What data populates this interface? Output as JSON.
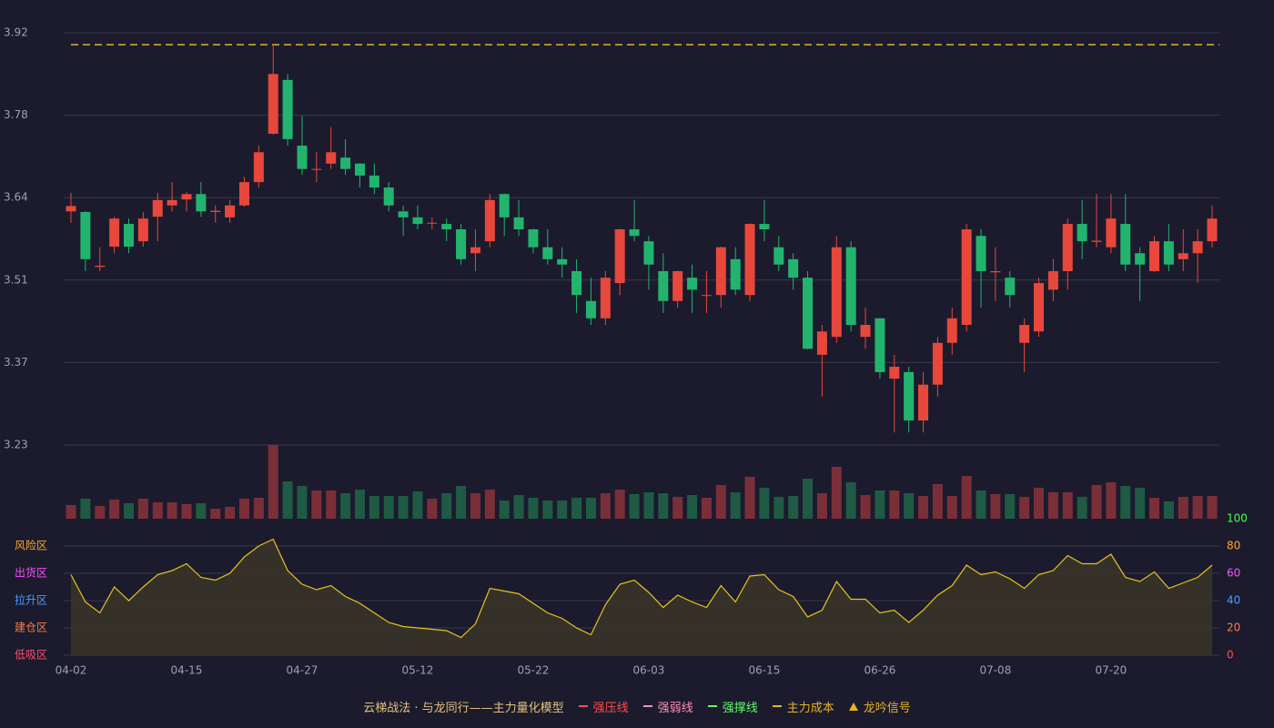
{
  "chart_data": [
    {
      "type": "candlestick",
      "up_color": "#e8473c",
      "down_color": "#22b46e",
      "categories": [
        "04-02",
        null,
        null,
        null,
        null,
        null,
        null,
        null,
        "04-15",
        null,
        null,
        null,
        null,
        null,
        null,
        null,
        "04-27",
        null,
        null,
        null,
        null,
        null,
        null,
        null,
        "05-12",
        null,
        null,
        null,
        null,
        null,
        null,
        null,
        "05-22",
        null,
        null,
        null,
        null,
        null,
        null,
        null,
        "06-03",
        null,
        null,
        null,
        null,
        null,
        null,
        null,
        "06-15",
        null,
        null,
        null,
        null,
        null,
        null,
        null,
        "06-26",
        null,
        null,
        null,
        null,
        null,
        null,
        null,
        "07-08",
        null,
        null,
        null,
        null,
        null,
        null,
        null,
        "07-20",
        null,
        null,
        null,
        null,
        null,
        null,
        null
      ],
      "open": [
        3.621,
        3.62,
        3.528,
        3.562,
        3.6,
        3.571,
        3.612,
        3.631,
        3.641,
        3.65,
        3.62,
        3.611,
        3.631,
        3.67,
        3.751,
        3.841,
        3.731,
        3.691,
        3.701,
        3.711,
        3.701,
        3.681,
        3.661,
        3.621,
        3.611,
        3.601,
        3.6,
        3.591,
        3.551,
        3.571,
        3.65,
        3.611,
        3.591,
        3.561,
        3.541,
        3.521,
        3.471,
        3.442,
        3.501,
        3.591,
        3.571,
        3.521,
        3.471,
        3.51,
        3.48,
        3.481,
        3.541,
        3.481,
        3.6,
        3.561,
        3.541,
        3.51,
        3.381,
        3.411,
        3.561,
        3.411,
        3.442,
        3.341,
        3.352,
        3.271,
        3.331,
        3.401,
        3.431,
        3.58,
        3.519,
        3.51,
        3.401,
        3.42,
        3.49,
        3.521,
        3.6,
        3.57,
        3.561,
        3.6,
        3.551,
        3.521,
        3.571,
        3.541,
        3.551,
        3.571
      ],
      "high": [
        3.652,
        3.621,
        3.561,
        3.612,
        3.609,
        3.62,
        3.652,
        3.67,
        3.653,
        3.67,
        3.631,
        3.64,
        3.679,
        3.731,
        3.9,
        3.851,
        3.781,
        3.72,
        3.762,
        3.742,
        3.702,
        3.701,
        3.67,
        3.631,
        3.631,
        3.611,
        3.609,
        3.6,
        3.591,
        3.65,
        3.651,
        3.64,
        3.592,
        3.591,
        3.561,
        3.541,
        3.51,
        3.521,
        3.592,
        3.64,
        3.58,
        3.551,
        3.522,
        3.532,
        3.521,
        3.562,
        3.561,
        3.601,
        3.64,
        3.58,
        3.551,
        3.521,
        3.431,
        3.58,
        3.571,
        3.46,
        3.443,
        3.381,
        3.361,
        3.352,
        3.411,
        3.46,
        3.6,
        3.591,
        3.561,
        3.521,
        3.442,
        3.51,
        3.541,
        3.609,
        3.64,
        3.65,
        3.65,
        3.65,
        3.561,
        3.58,
        3.6,
        3.591,
        3.591,
        3.631
      ],
      "low": [
        3.602,
        3.521,
        3.521,
        3.551,
        3.551,
        3.562,
        3.571,
        3.621,
        3.621,
        3.612,
        3.602,
        3.602,
        3.629,
        3.661,
        3.749,
        3.731,
        3.682,
        3.67,
        3.692,
        3.682,
        3.661,
        3.65,
        3.621,
        3.58,
        3.591,
        3.591,
        3.571,
        3.532,
        3.521,
        3.561,
        3.58,
        3.58,
        3.551,
        3.532,
        3.51,
        3.451,
        3.431,
        3.431,
        3.481,
        3.571,
        3.49,
        3.451,
        3.46,
        3.451,
        3.451,
        3.46,
        3.481,
        3.471,
        3.571,
        3.521,
        3.49,
        3.39,
        3.311,
        3.401,
        3.42,
        3.391,
        3.341,
        3.251,
        3.251,
        3.251,
        3.311,
        3.381,
        3.42,
        3.46,
        3.471,
        3.46,
        3.352,
        3.411,
        3.471,
        3.49,
        3.541,
        3.561,
        3.551,
        3.521,
        3.471,
        3.52,
        3.521,
        3.521,
        3.501,
        3.561
      ],
      "close": [
        3.63,
        3.541,
        3.53,
        3.609,
        3.562,
        3.609,
        3.64,
        3.64,
        3.65,
        3.621,
        3.622,
        3.631,
        3.67,
        3.72,
        3.851,
        3.742,
        3.692,
        3.692,
        3.72,
        3.692,
        3.681,
        3.661,
        3.631,
        3.611,
        3.6,
        3.602,
        3.591,
        3.541,
        3.561,
        3.64,
        3.611,
        3.591,
        3.561,
        3.541,
        3.532,
        3.481,
        3.442,
        3.51,
        3.591,
        3.58,
        3.532,
        3.471,
        3.521,
        3.49,
        3.481,
        3.561,
        3.49,
        3.6,
        3.591,
        3.532,
        3.51,
        3.391,
        3.42,
        3.561,
        3.431,
        3.431,
        3.352,
        3.361,
        3.271,
        3.331,
        3.401,
        3.442,
        3.591,
        3.521,
        3.521,
        3.481,
        3.431,
        3.501,
        3.521,
        3.6,
        3.571,
        3.572,
        3.609,
        3.532,
        3.532,
        3.571,
        3.532,
        3.551,
        3.571,
        3.609
      ],
      "ylim": [
        3.23,
        3.92
      ],
      "yticks": [
        3.23,
        {
          "value": 3.368,
          "label": "3.37"
        },
        {
          "value": 3.506,
          "label": "3.51"
        },
        {
          "value": 3.644,
          "label": "3.64"
        },
        {
          "value": 3.782,
          "label": "3.78"
        },
        3.92
      ],
      "grid": true,
      "lines": [
        {
          "name": "主力成本",
          "value": 3.9,
          "color": "#e6b422"
        }
      ],
      "legend": {
        "title": "云梯战法 · 与龙同行——主力量化模型",
        "title_color": "#e6c07a",
        "items": [
          {
            "name": "强压线",
            "color": "#ff4d4d",
            "style": "solid"
          },
          {
            "name": "强弱线",
            "color": "#ff8fb0",
            "style": "dashed"
          },
          {
            "name": "强撑线",
            "color": "#5dff6a",
            "style": "solid"
          },
          {
            "name": "主力成本",
            "color": "#e6b422",
            "style": "dashed"
          },
          {
            "name": "龙吟信号",
            "color": "#e6b422",
            "style": "triangle"
          }
        ]
      }
    },
    {
      "type": "bar",
      "values": [
        15,
        22,
        14,
        21,
        17,
        22,
        18,
        18,
        16,
        17,
        11,
        13,
        22,
        23,
        81,
        41,
        36,
        31,
        31,
        28,
        32,
        25,
        25,
        25,
        30,
        22,
        28,
        36,
        28,
        32,
        20,
        26,
        23,
        20,
        20,
        23,
        23,
        28,
        32,
        27,
        29,
        28,
        24,
        26,
        23,
        37,
        29,
        46,
        34,
        24,
        25,
        44,
        28,
        57,
        40,
        26,
        31,
        31,
        28,
        25,
        38,
        25,
        47,
        31,
        27,
        27,
        24,
        34,
        29,
        29,
        24,
        37,
        40,
        36,
        34,
        23,
        19,
        24,
        25,
        25
      ],
      "up_color": "#7a2f38",
      "down_color": "#1f5a44"
    },
    {
      "type": "line",
      "color": "#e6c21e",
      "fill": "#3a3428",
      "values": [
        59,
        39,
        31,
        50,
        40,
        50,
        59,
        62,
        67,
        57,
        55,
        60,
        72,
        80,
        85,
        62,
        52,
        48,
        51,
        43,
        38,
        31,
        24,
        21,
        20,
        19,
        18,
        13,
        23,
        49,
        47,
        45,
        38,
        31,
        27,
        20,
        15,
        37,
        52,
        55,
        46,
        35,
        44,
        39,
        35,
        51,
        39,
        58,
        59,
        48,
        43,
        28,
        33,
        54,
        41,
        41,
        31,
        33,
        24,
        33,
        44,
        51,
        66,
        59,
        61,
        56,
        49,
        59,
        62,
        73,
        67,
        67,
        74,
        57,
        54,
        61,
        49,
        53,
        57,
        66
      ],
      "ylim": [
        0,
        100
      ],
      "yticks": [
        0,
        20,
        40,
        60,
        80,
        100
      ],
      "ytick_colors": [
        "#ff4d4d",
        "#ff7a45",
        "#4d9bff",
        "#ff4dff",
        "#ffa726",
        "#4dff4d"
      ],
      "zones": [
        {
          "label": "风险区",
          "value": 80,
          "color": "#ffa726"
        },
        {
          "label": "出货区",
          "value": 60,
          "color": "#ff4dff"
        },
        {
          "label": "拉升区",
          "value": 40,
          "color": "#4d9bff"
        },
        {
          "label": "建仓区",
          "value": 20,
          "color": "#ff7a45"
        },
        {
          "label": "低吸区",
          "value": 0,
          "color": "#ff4d6d"
        }
      ]
    }
  ]
}
